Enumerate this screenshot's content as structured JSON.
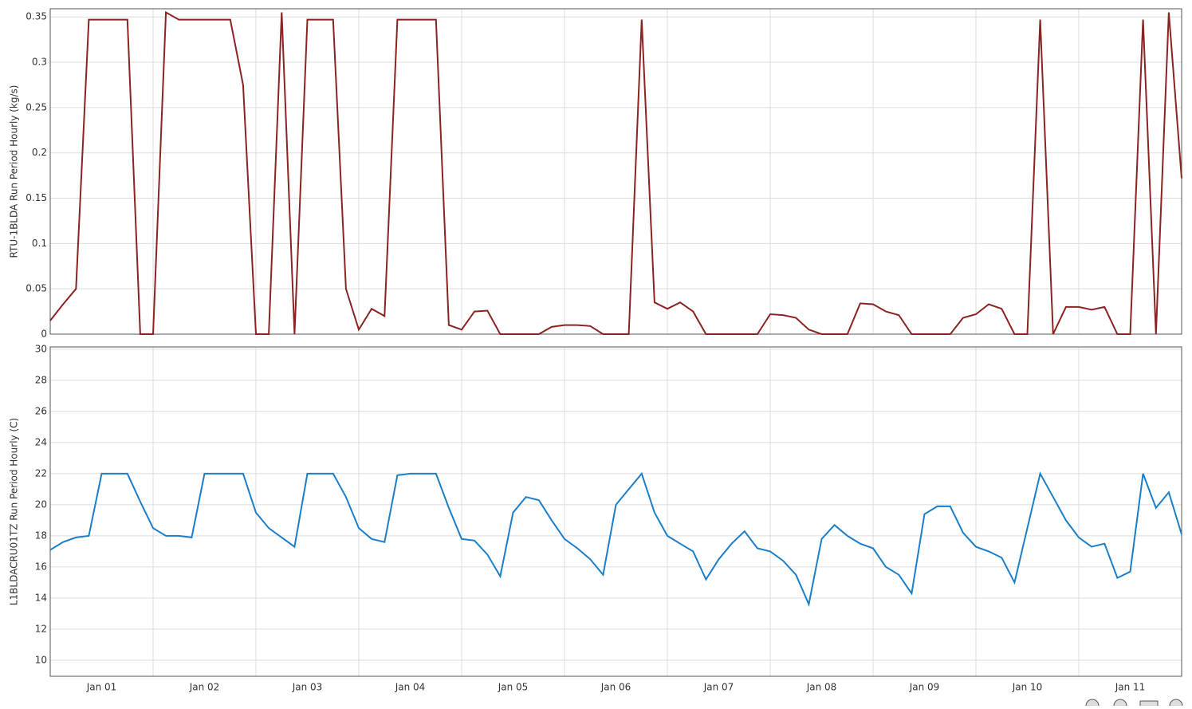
{
  "chart_data": [
    {
      "type": "line",
      "y_label": "RTU-1BLDA Run Period Hourly (kg/s)",
      "ylim": [
        0,
        0.359
      ],
      "yticks": [
        0,
        0.05,
        0.1,
        0.15,
        0.2,
        0.25,
        0.3,
        0.35
      ],
      "grid": true,
      "series": [
        {
          "color": "#8b2323",
          "values": [
            0.015,
            0.033,
            0.05,
            0.347,
            0.347,
            0.347,
            0.347,
            0,
            0,
            0.355,
            0.347,
            0.347,
            0.347,
            0.347,
            0.347,
            0.275,
            0,
            0,
            0.355,
            0,
            0.347,
            0.347,
            0.347,
            0.05,
            0.005,
            0.028,
            0.02,
            0.347,
            0.347,
            0.347,
            0.347,
            0.01,
            0.005,
            0.025,
            0.026,
            0,
            0,
            0,
            0,
            0.008,
            0.01,
            0.01,
            0.009,
            0,
            0,
            0,
            0.347,
            0.035,
            0.028,
            0.035,
            0.025,
            0,
            0,
            0,
            0,
            0,
            0.022,
            0.021,
            0.018,
            0.005,
            0,
            0,
            0,
            0.034,
            0.033,
            0.025,
            0.021,
            0,
            0,
            0,
            0,
            0.018,
            0.022,
            0.033,
            0.028,
            0,
            0,
            0.347,
            0,
            0.03,
            0.03,
            0.027,
            0.03,
            0,
            0,
            0.347,
            0,
            0.355,
            0.172
          ]
        }
      ]
    },
    {
      "type": "line",
      "y_label": "L1BLDACRU01TZ Run Period Hourly (C)",
      "ylim": [
        8.97,
        30.15
      ],
      "yticks": [
        10,
        12,
        14,
        16,
        18,
        20,
        22,
        24,
        26,
        28,
        30
      ],
      "grid": true,
      "categories": [
        null,
        null,
        null,
        null,
        "Jan 01",
        null,
        null,
        null,
        null,
        null,
        null,
        null,
        "Jan 02",
        null,
        null,
        null,
        null,
        null,
        null,
        null,
        "Jan 03",
        null,
        null,
        null,
        null,
        null,
        null,
        null,
        "Jan 04",
        null,
        null,
        null,
        null,
        null,
        null,
        null,
        "Jan 05",
        null,
        null,
        null,
        null,
        null,
        null,
        null,
        "Jan 06",
        null,
        null,
        null,
        null,
        null,
        null,
        null,
        "Jan 07",
        null,
        null,
        null,
        null,
        null,
        null,
        null,
        "Jan 08",
        null,
        null,
        null,
        null,
        null,
        null,
        null,
        "Jan 09",
        null,
        null,
        null,
        null,
        null,
        null,
        null,
        "Jan 10",
        null,
        null,
        null,
        null,
        null,
        null,
        null,
        "Jan 11",
        null,
        null,
        null,
        null
      ],
      "series": [
        {
          "color": "#1a7fc8",
          "values": [
            17.1,
            17.6,
            17.9,
            18.0,
            22.0,
            22.0,
            22.0,
            20.2,
            18.5,
            18.0,
            18.0,
            17.9,
            22.0,
            22.0,
            22.0,
            22.0,
            19.5,
            18.5,
            17.9,
            17.3,
            22.0,
            22.0,
            22.0,
            20.5,
            18.5,
            17.8,
            17.6,
            21.9,
            22.0,
            22.0,
            22.0,
            19.8,
            17.8,
            17.7,
            16.8,
            15.4,
            19.5,
            20.5,
            20.3,
            19.0,
            17.8,
            17.2,
            16.5,
            15.5,
            20.0,
            21.0,
            22.0,
            19.5,
            18.0,
            17.5,
            17.0,
            15.2,
            16.5,
            17.5,
            18.3,
            17.2,
            17.0,
            16.4,
            15.5,
            13.6,
            17.8,
            18.7,
            18.0,
            17.5,
            17.2,
            16.0,
            15.5,
            14.3,
            19.4,
            19.9,
            19.9,
            18.2,
            17.3,
            17.0,
            16.6,
            15.0,
            18.5,
            22.0,
            20.5,
            19.0,
            17.9,
            17.3,
            17.5,
            15.3,
            15.7,
            22.0,
            19.8,
            20.8,
            18.1
          ]
        }
      ]
    }
  ]
}
